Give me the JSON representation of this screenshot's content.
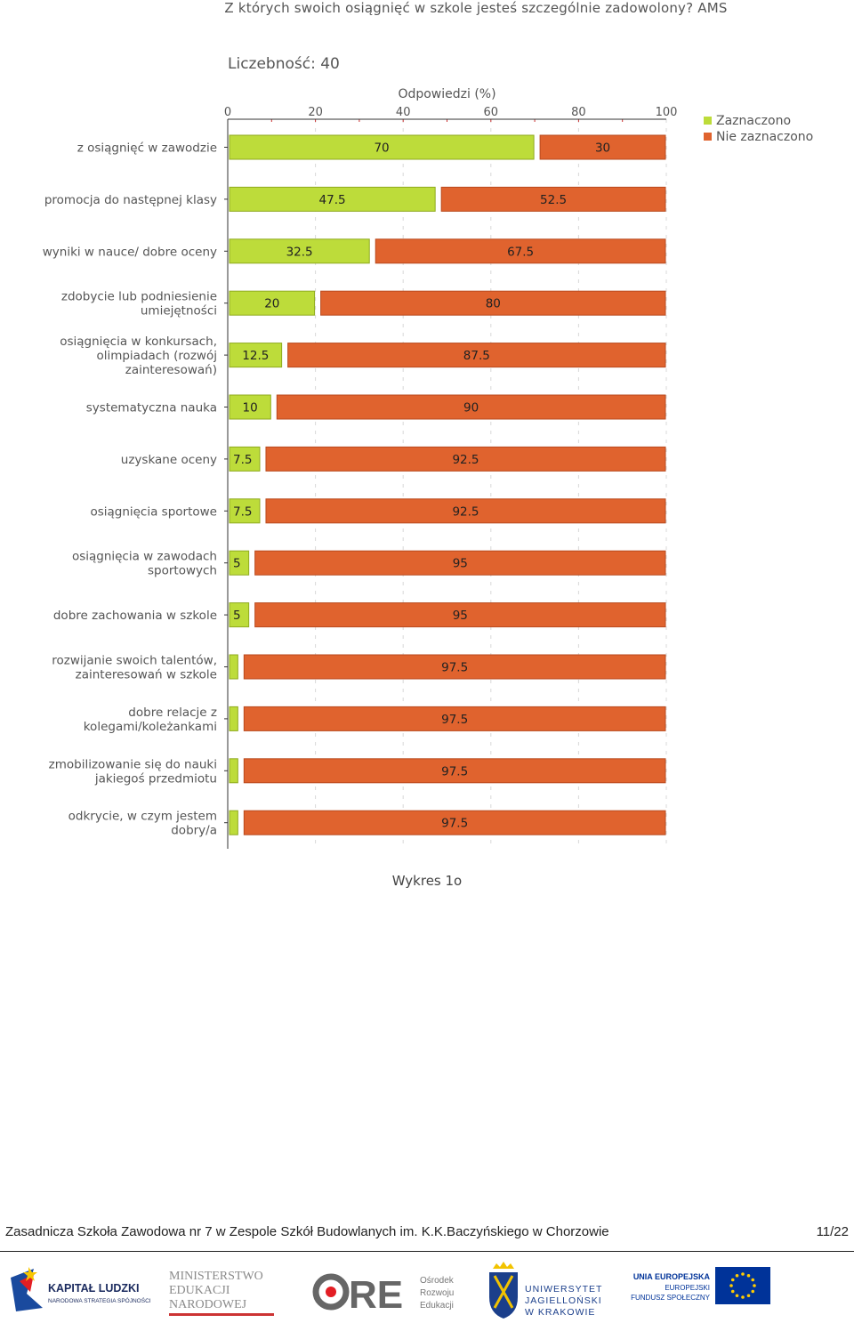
{
  "title": "Z których swoich osiągnięć w szkole jesteś szczególnie zadowolony? AMS",
  "count_label": "Liczebność: 40",
  "caption": "Wykres 1o",
  "footer": {
    "school": "Zasadnicza Szkoła Zawodowa nr 7 w Zespole Szkół Budowlanych im. K.K.Baczyńskiego w Chorzowie",
    "page": "11/22"
  },
  "logos": {
    "kl_line1": "KAPITAŁ LUDZKI",
    "kl_line2": "NARODOWA STRATEGIA SPÓJNOŚCI",
    "men_line1": "MINISTERSTWO",
    "men_line2": "EDUKACJI",
    "men_line3": "NARODOWEJ",
    "ore_main": "RE",
    "ore_line1": "Ośrodek",
    "ore_line2": "Rozwoju",
    "ore_line3": "Edukacji",
    "uj_line1": "UNIWERSYTET",
    "uj_line2": "JAGIELLOŃSKI",
    "uj_line3": "W KRAKOWIE",
    "ue_line1": "UNIA EUROPEJSKA",
    "ue_line2": "EUROPEJSKI",
    "ue_line3": "FUNDUSZ SPOŁECZNY"
  },
  "colors": {
    "selected": "#bddc3a",
    "not_selected": "#e0632e",
    "eu_blue": "#003399",
    "eu_star": "#ffcc00"
  },
  "chart_data": {
    "type": "bar",
    "orientation": "horizontal-stacked",
    "xlabel": "Odpowiedzi (%)",
    "xlim": [
      0,
      100
    ],
    "xticks": [
      0,
      20,
      40,
      60,
      80,
      100
    ],
    "legend_position": "top-right",
    "categories": [
      [
        "z osiągnięć w zawodzie"
      ],
      [
        "promocja do następnej klasy"
      ],
      [
        "wyniki w nauce/ dobre oceny"
      ],
      [
        "zdobycie lub podniesienie",
        "umiejętności"
      ],
      [
        "osiągnięcia w konkursach,",
        "olimpiadach (rozwój",
        "zainteresowań)"
      ],
      [
        "systematyczna nauka"
      ],
      [
        "uzyskane oceny"
      ],
      [
        "osiągnięcia sportowe"
      ],
      [
        "osiągnięcia w zawodach",
        "sportowych"
      ],
      [
        "dobre zachowania w szkole"
      ],
      [
        "rozwijanie swoich talentów,",
        "zainteresowań w szkole"
      ],
      [
        "dobre relacje z",
        "kolegami/koleżankami"
      ],
      [
        "zmobilizowanie się do nauki",
        "jakiegoś przedmiotu"
      ],
      [
        "odkrycie, w czym jestem",
        "dobry/a"
      ]
    ],
    "series": [
      {
        "name": "Zaznaczono",
        "values": [
          70,
          47.5,
          32.5,
          20,
          12.5,
          10,
          7.5,
          7.5,
          5,
          5,
          2.5,
          2.5,
          2.5,
          2.5
        ]
      },
      {
        "name": "Nie zaznaczono",
        "values": [
          30,
          52.5,
          67.5,
          80,
          87.5,
          90,
          92.5,
          92.5,
          95,
          95,
          97.5,
          97.5,
          97.5,
          97.5
        ]
      }
    ],
    "value_labels": [
      [
        "70",
        "47.5",
        "32.5",
        "20",
        "12.5",
        "10",
        "7.5",
        "7.5",
        "5",
        "5",
        "",
        "",
        "",
        ""
      ],
      [
        "30",
        "52.5",
        "67.5",
        "80",
        "87.5",
        "90",
        "92.5",
        "92.5",
        "95",
        "95",
        "97.5",
        "97.5",
        "97.5",
        "97.5"
      ]
    ]
  }
}
